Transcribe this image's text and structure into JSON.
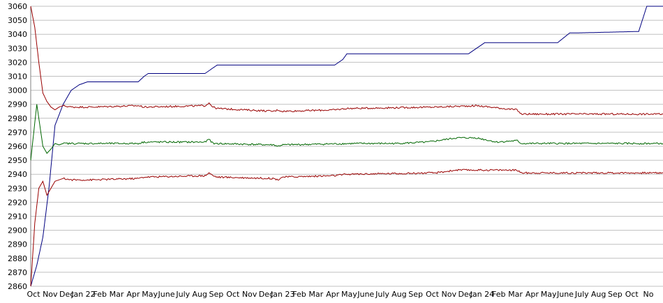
{
  "chart_data": {
    "type": "line",
    "title": "",
    "xlabel": "",
    "ylabel": "",
    "ylim": [
      2860,
      3060
    ],
    "y_ticks": [
      2860,
      2870,
      2880,
      2890,
      2900,
      2910,
      2920,
      2930,
      2940,
      2950,
      2960,
      2970,
      2980,
      2990,
      3000,
      3010,
      3020,
      3030,
      3040,
      3050,
      3060
    ],
    "x_tick_labels": [
      "Oct",
      "Nov",
      "Dec",
      "Jan 22",
      "Feb",
      "Mar",
      "Apr",
      "May",
      "June",
      "July",
      "Aug",
      "Sep",
      "Oct",
      "Nov",
      "Dec",
      "Jan 23",
      "Feb",
      "Mar",
      "Apr",
      "May",
      "June",
      "July",
      "Aug",
      "Sep",
      "Oct",
      "Nov",
      "Dec",
      "Jan 24",
      "Feb",
      "Mar",
      "Apr",
      "May",
      "June",
      "July",
      "Aug",
      "Sep",
      "Oct",
      "No"
    ],
    "grid": "horizontal",
    "legend": "none",
    "series": [
      {
        "color": "#000080",
        "x": [
          0,
          1.5,
          3,
          4.5,
          6,
          8,
          10,
          12,
          14,
          26.5,
          28,
          29,
          43,
          45,
          46,
          75,
          77,
          78,
          108,
          110,
          112,
          130,
          133,
          135,
          150,
          152,
          156
        ],
        "values": [
          2860,
          2875,
          2895,
          2930,
          2975,
          2990,
          3000,
          3004,
          3006,
          3006,
          3010,
          3012,
          3012,
          3016,
          3018,
          3018,
          3022,
          3026,
          3026,
          3030,
          3034,
          3034,
          3041,
          3041,
          3042,
          3060,
          3060
        ],
        "noise": 0
      },
      {
        "color": "#990000",
        "x": [
          0,
          1,
          2,
          3,
          4,
          5,
          6,
          7,
          8,
          10,
          15,
          26.5,
          28,
          43,
          44,
          45,
          46,
          60,
          61,
          62,
          75,
          78,
          100,
          110,
          120,
          121,
          156
        ],
        "values": [
          3060,
          3045,
          3020,
          2998,
          2992,
          2988,
          2986,
          2988,
          2989,
          2988,
          2988,
          2989,
          2988,
          2989,
          2991,
          2988,
          2987,
          2985,
          2986,
          2985,
          2986,
          2987,
          2988,
          2989,
          2986,
          2983,
          2983
        ],
        "noise": 0.6
      },
      {
        "color": "#006600",
        "x": [
          0,
          1.5,
          3,
          4,
          5,
          6,
          7,
          8,
          10,
          15,
          26.5,
          28,
          43,
          44,
          45,
          60,
          61,
          62,
          80,
          90,
          98,
          105,
          110,
          115,
          120,
          121,
          156
        ],
        "values": [
          2950,
          2990,
          2960,
          2955,
          2958,
          2962,
          2961,
          2962,
          2962,
          2962,
          2962,
          2963,
          2963,
          2965,
          2962,
          2961,
          2960,
          2961,
          2962,
          2962,
          2963,
          2966,
          2966,
          2963,
          2964,
          2962,
          2962
        ],
        "noise": 0.6
      },
      {
        "color": "#990000",
        "x": [
          0,
          1,
          2,
          3,
          4,
          5,
          6,
          7,
          8,
          10,
          15,
          26.5,
          28,
          43,
          44,
          45,
          46,
          60,
          61,
          62,
          75,
          78,
          100,
          105,
          110,
          120,
          121,
          156
        ],
        "values": [
          2860,
          2905,
          2930,
          2935,
          2925,
          2930,
          2935,
          2936,
          2937,
          2936,
          2936,
          2937,
          2938,
          2939,
          2941,
          2939,
          2938,
          2937,
          2936,
          2938,
          2939,
          2940,
          2941,
          2943,
          2943,
          2943,
          2941,
          2941
        ],
        "noise": 0.6
      }
    ]
  }
}
